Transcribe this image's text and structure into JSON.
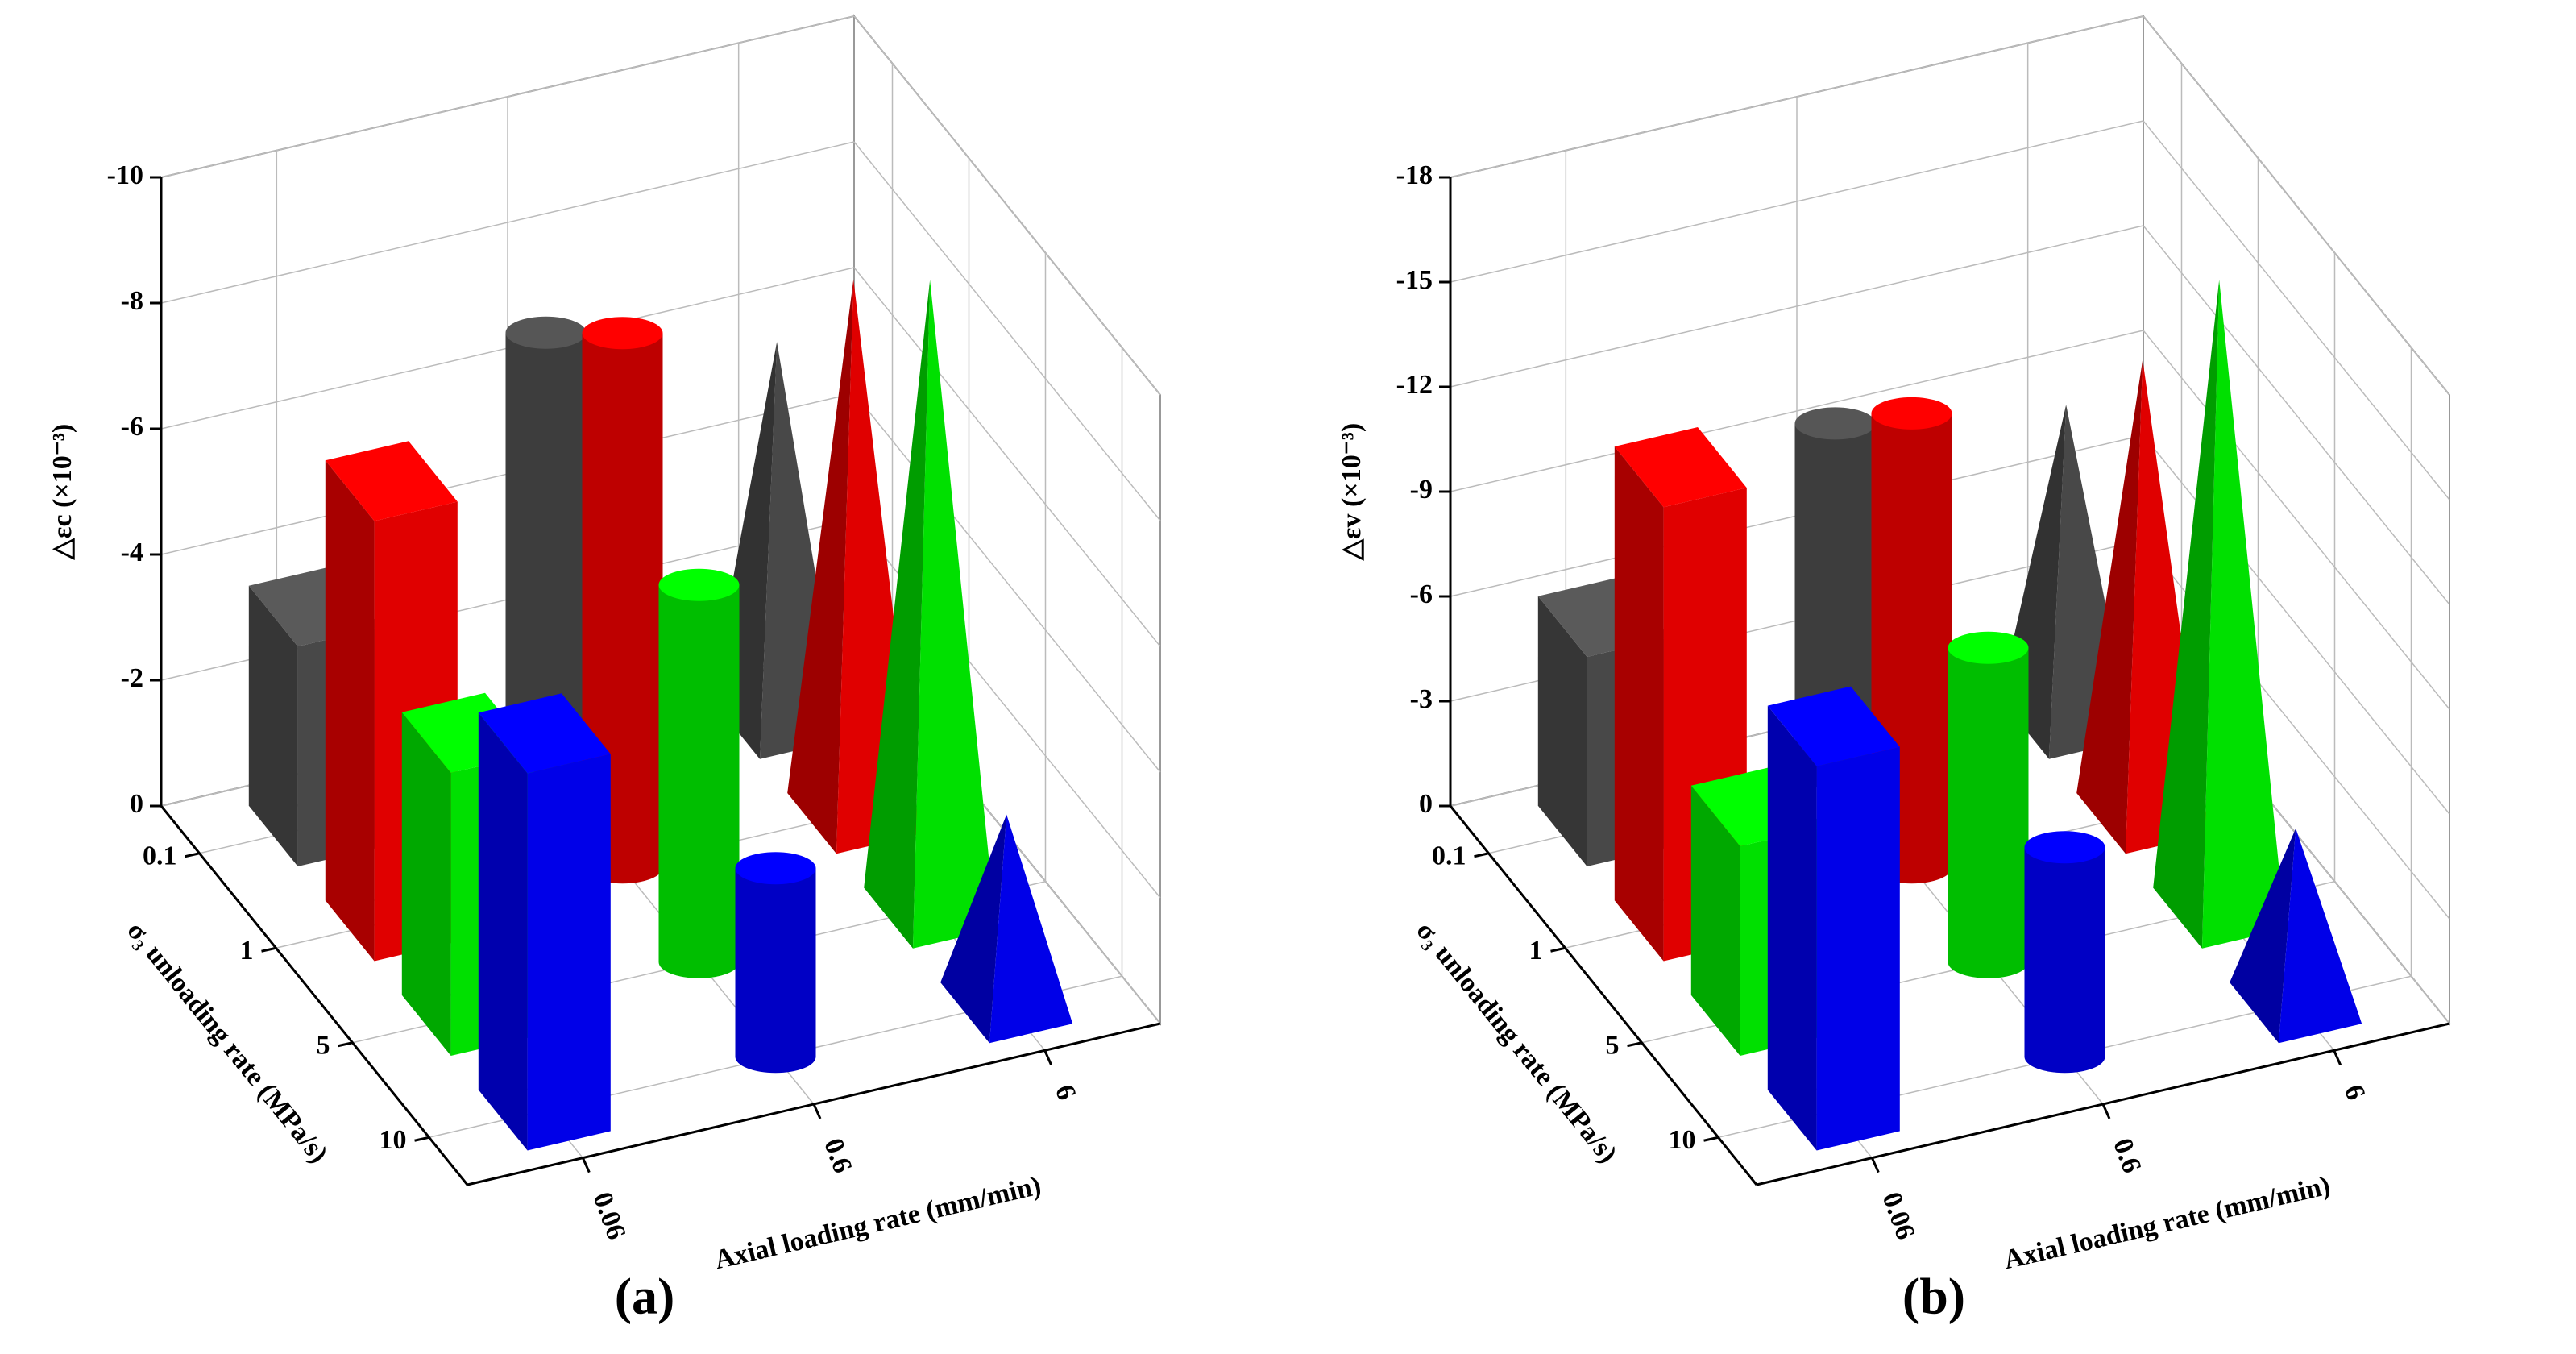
{
  "chart_data": [
    {
      "type": "bar3d",
      "caption": "(a)",
      "xlabel": "Axial loading rate (mm/min)",
      "ylabel": "σ₃ unloading rate (MPa/s)",
      "zlabel": "△εc (×10⁻³)",
      "categories": [
        "0.06",
        "0.6",
        "6"
      ],
      "shapes": [
        "box",
        "cylinder",
        "cone"
      ],
      "series": [
        {
          "name": "0.1",
          "color": "#484848",
          "values": [
            -3.5,
            -7,
            -6
          ]
        },
        {
          "name": "1",
          "color": "#e00000",
          "values": [
            -7,
            -8.5,
            -8.5
          ]
        },
        {
          "name": "5",
          "color": "#00e000",
          "values": [
            -4.5,
            -6,
            -10
          ]
        },
        {
          "name": "10",
          "color": "#0000e8",
          "values": [
            -6,
            -3,
            -3
          ]
        }
      ],
      "zlim": [
        0,
        -10
      ],
      "zticks": [
        0,
        -2,
        -4,
        -6,
        -8,
        -10
      ],
      "grid": true
    },
    {
      "type": "bar3d",
      "caption": "(b)",
      "xlabel": "Axial loading rate (mm/min)",
      "ylabel": "σ₃ unloading rate (MPa/s)",
      "zlabel": "△εv (×10⁻³)",
      "categories": [
        "0.06",
        "0.6",
        "6"
      ],
      "shapes": [
        "box",
        "cylinder",
        "cone"
      ],
      "series": [
        {
          "name": "0.1",
          "color": "#484848",
          "values": [
            -6,
            -10,
            -9
          ]
        },
        {
          "name": "1",
          "color": "#e00000",
          "values": [
            -13,
            -13,
            -13
          ]
        },
        {
          "name": "5",
          "color": "#00e000",
          "values": [
            -6,
            -9,
            -18
          ]
        },
        {
          "name": "10",
          "color": "#0000e8",
          "values": [
            -11,
            -6,
            -5
          ]
        }
      ],
      "zlim": [
        0,
        -18
      ],
      "zticks": [
        0,
        -3,
        -6,
        -9,
        -12,
        -15,
        -18
      ],
      "grid": true
    }
  ]
}
